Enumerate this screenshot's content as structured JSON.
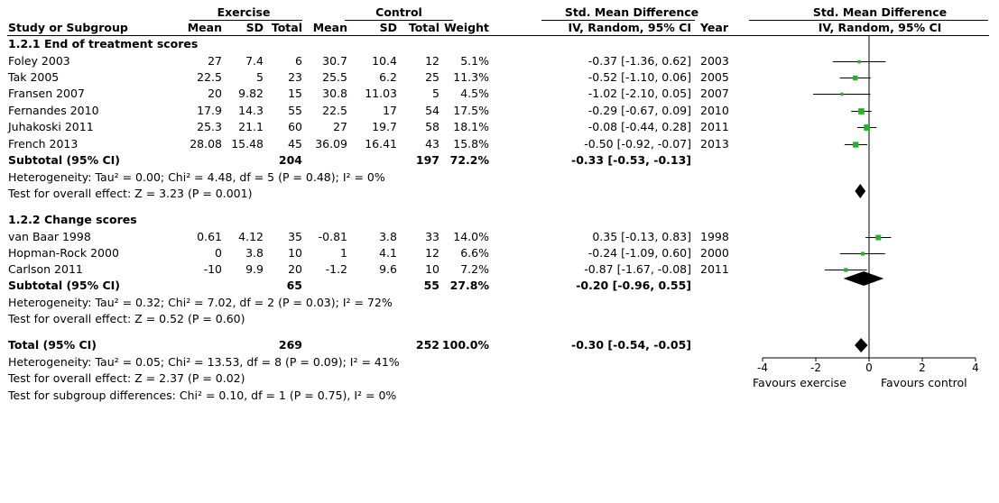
{
  "header": {
    "exercise": "Exercise",
    "control": "Control",
    "smd_title": "Std. Mean Difference",
    "plot_title": "Std. Mean Difference",
    "study_col": "Study or Subgroup",
    "mean1": "Mean",
    "sd1": "SD",
    "total1": "Total",
    "mean2": "Mean",
    "sd2": "SD",
    "total2": "Total",
    "weight": "Weight",
    "method": "IV, Random, 95% CI",
    "year": "Year",
    "plot_method": "IV, Random, 95% CI"
  },
  "groups": [
    {
      "title": "1.2.1 End of treatment scores",
      "subtotal": {
        "label": "Subtotal (95% CI)",
        "total1": "204",
        "total2": "197",
        "weight": "72.2%",
        "ci": "-0.33 [-0.53, -0.13]"
      },
      "heterogeneity": "Heterogeneity: Tau² = 0.00; Chi² = 4.48, df = 5 (P = 0.48); I² = 0%",
      "overall": "Test for overall effect: Z = 3.23 (P = 0.001)"
    },
    {
      "title": "1.2.2 Change scores",
      "subtotal": {
        "label": "Subtotal (95% CI)",
        "total1": "65",
        "total2": "55",
        "weight": "27.8%",
        "ci": "-0.20 [-0.96, 0.55]"
      },
      "heterogeneity": "Heterogeneity: Tau² = 0.32; Chi² = 7.02, df = 2 (P = 0.03); I² = 72%",
      "overall": "Test for overall effect: Z = 0.52 (P = 0.60)"
    }
  ],
  "total": {
    "label": "Total (95% CI)",
    "total1": "269",
    "total2": "252",
    "weight": "100.0%",
    "ci": "-0.30 [-0.54, -0.05]",
    "heterogeneity": "Heterogeneity: Tau² = 0.05; Chi² = 13.53, df = 8 (P = 0.09); I² = 41%",
    "overall": "Test for overall effect: Z = 2.37 (P = 0.02)",
    "subgroup": "Test for subgroup differences: Chi² = 0.10, df = 1 (P = 0.75), I² = 0%"
  },
  "studies": [
    [
      "Foley 2003",
      "27",
      "7.4",
      "6",
      "30.7",
      "10.4",
      "12",
      "5.1%",
      "-0.37 [-1.36, 0.62]",
      "2003"
    ],
    [
      "Tak 2005",
      "22.5",
      "5",
      "23",
      "25.5",
      "6.2",
      "25",
      "11.3%",
      "-0.52 [-1.10, 0.06]",
      "2005"
    ],
    [
      "Fransen 2007",
      "20",
      "9.82",
      "15",
      "30.8",
      "11.03",
      "5",
      "4.5%",
      "-1.02 [-2.10, 0.05]",
      "2007"
    ],
    [
      "Fernandes 2010",
      "17.9",
      "14.3",
      "55",
      "22.5",
      "17",
      "54",
      "17.5%",
      "-0.29 [-0.67, 0.09]",
      "2010"
    ],
    [
      "Juhakoski 2011",
      "25.3",
      "21.1",
      "60",
      "27",
      "19.7",
      "58",
      "18.1%",
      "-0.08 [-0.44, 0.28]",
      "2011"
    ],
    [
      "French 2013",
      "28.08",
      "15.48",
      "45",
      "36.09",
      "16.41",
      "43",
      "15.8%",
      "-0.50 [-0.92, -0.07]",
      "2013"
    ],
    [
      "van Baar 1998",
      "0.61",
      "4.12",
      "35",
      "-0.81",
      "3.8",
      "33",
      "14.0%",
      "0.35 [-0.13, 0.83]",
      "1998"
    ],
    [
      "Hopman-Rock 2000",
      "0",
      "3.8",
      "10",
      "1",
      "4.1",
      "12",
      "6.6%",
      "-0.24 [-1.09, 0.60]",
      "2000"
    ],
    [
      "Carlson 2011",
      "-10",
      "9.9",
      "20",
      "-1.2",
      "9.6",
      "10",
      "7.2%",
      "-0.87 [-1.67, -0.08]",
      "2011"
    ]
  ],
  "axis": {
    "ticks": [
      "-4",
      "-2",
      "0",
      "2",
      "4"
    ],
    "left_label": "Favours exercise",
    "right_label": "Favours control"
  },
  "chart_data": {
    "type": "forest",
    "xlim": [
      -4,
      4
    ],
    "xticks": [
      -4,
      -2,
      0,
      2,
      4
    ],
    "studies": [
      {
        "name": "Foley 2003",
        "group": "1.2.1",
        "est": -0.37,
        "lo": -1.36,
        "hi": 0.62,
        "weight": 5.1
      },
      {
        "name": "Tak 2005",
        "group": "1.2.1",
        "est": -0.52,
        "lo": -1.1,
        "hi": 0.06,
        "weight": 11.3
      },
      {
        "name": "Fransen 2007",
        "group": "1.2.1",
        "est": -1.02,
        "lo": -2.1,
        "hi": 0.05,
        "weight": 4.5
      },
      {
        "name": "Fernandes 2010",
        "group": "1.2.1",
        "est": -0.29,
        "lo": -0.67,
        "hi": 0.09,
        "weight": 17.5
      },
      {
        "name": "Juhakoski 2011",
        "group": "1.2.1",
        "est": -0.08,
        "lo": -0.44,
        "hi": 0.28,
        "weight": 18.1
      },
      {
        "name": "French 2013",
        "group": "1.2.1",
        "est": -0.5,
        "lo": -0.92,
        "hi": -0.07,
        "weight": 15.8
      },
      {
        "name": "van Baar 1998",
        "group": "1.2.2",
        "est": 0.35,
        "lo": -0.13,
        "hi": 0.83,
        "weight": 14.0
      },
      {
        "name": "Hopman-Rock 2000",
        "group": "1.2.2",
        "est": -0.24,
        "lo": -1.09,
        "hi": 0.6,
        "weight": 6.6
      },
      {
        "name": "Carlson 2011",
        "group": "1.2.2",
        "est": -0.87,
        "lo": -1.67,
        "hi": -0.08,
        "weight": 7.2
      }
    ],
    "pooled": [
      {
        "name": "Subtotal 1.2.1",
        "est": -0.33,
        "lo": -0.53,
        "hi": -0.13
      },
      {
        "name": "Subtotal 1.2.2",
        "est": -0.2,
        "lo": -0.96,
        "hi": 0.55
      },
      {
        "name": "Total",
        "est": -0.3,
        "lo": -0.54,
        "hi": -0.05
      }
    ],
    "colors": {
      "point": "#22b522",
      "line": "#000000",
      "diamond": "#000000"
    }
  }
}
